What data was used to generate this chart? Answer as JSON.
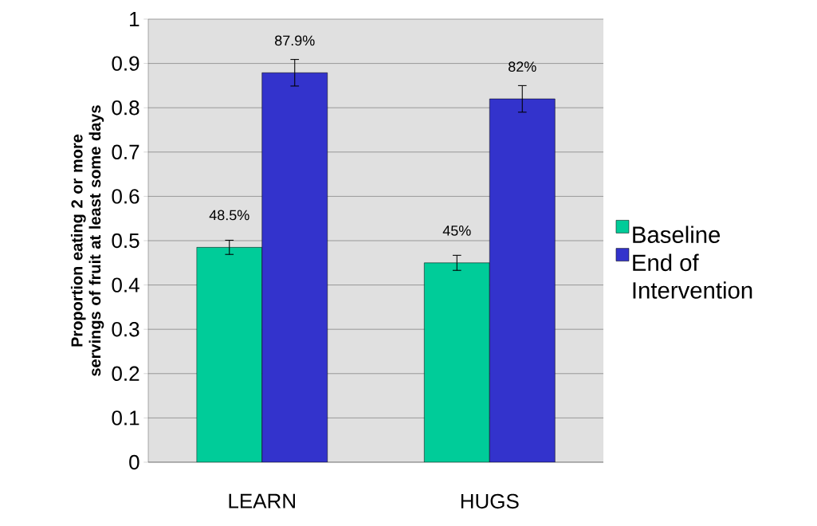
{
  "chart_data": {
    "type": "bar",
    "ylabel": "Proportion eating 2 or more servings of fruit at least some days",
    "categories": [
      "LEARN",
      "HUGS"
    ],
    "series": [
      {
        "name": "Baseline",
        "color": "#00cc99",
        "values": [
          0.485,
          0.45
        ],
        "errors": [
          0.016,
          0.017
        ],
        "value_labels": [
          "48.5%",
          "45%"
        ]
      },
      {
        "name": "End of Intervention",
        "color": "#3333cc",
        "values": [
          0.879,
          0.82
        ],
        "errors": [
          0.03,
          0.03
        ],
        "value_labels": [
          "87.9%",
          "82%"
        ]
      }
    ],
    "ylim": [
      0,
      1
    ],
    "yticks": [
      0,
      0.1,
      0.2,
      0.3,
      0.4,
      0.5,
      0.6,
      0.7,
      0.8,
      0.9,
      1
    ],
    "grid": "y",
    "legend": "right"
  }
}
